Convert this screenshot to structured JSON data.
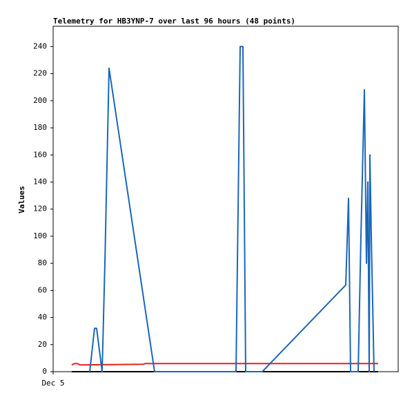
{
  "chart_data": {
    "type": "line",
    "title": "Telemetry for HB3YNP-7 over last 96 hours (48 points)",
    "y_label": "Values",
    "xlim": [
      0,
      100
    ],
    "xticks": [
      {
        "value": 0,
        "label": "Dec 5"
      }
    ],
    "ylim": [
      0,
      255
    ],
    "yticks": [
      0,
      20,
      40,
      60,
      80,
      100,
      120,
      140,
      160,
      180,
      200,
      220,
      240
    ],
    "grid": false,
    "series": [
      {
        "color": "#000000",
        "x": [
          5.4,
          94.2
        ],
        "values": [
          0,
          0
        ]
      },
      {
        "color": "#e8201c",
        "x": [
          5.4,
          6.2,
          7,
          7.8,
          26.2,
          26.6,
          94.2
        ],
        "values": [
          5,
          6,
          6,
          5,
          5.5,
          6,
          6
        ]
      },
      {
        "color": "#1a66b8",
        "x": [
          10.6,
          12,
          12.6,
          14.2,
          15,
          16.2,
          29.4,
          53,
          54.2,
          55,
          55.8,
          60.6,
          84.8,
          85.6,
          86.2,
          88.4,
          89.2,
          90.2,
          90.8,
          91.2,
          91.6,
          91.8,
          92.2,
          93
        ],
        "values": [
          0,
          32,
          32,
          0,
          80,
          224,
          0,
          0,
          240,
          240,
          0,
          0,
          64,
          128,
          0,
          0,
          100,
          208,
          80,
          140,
          0,
          160,
          100,
          0
        ]
      }
    ]
  }
}
